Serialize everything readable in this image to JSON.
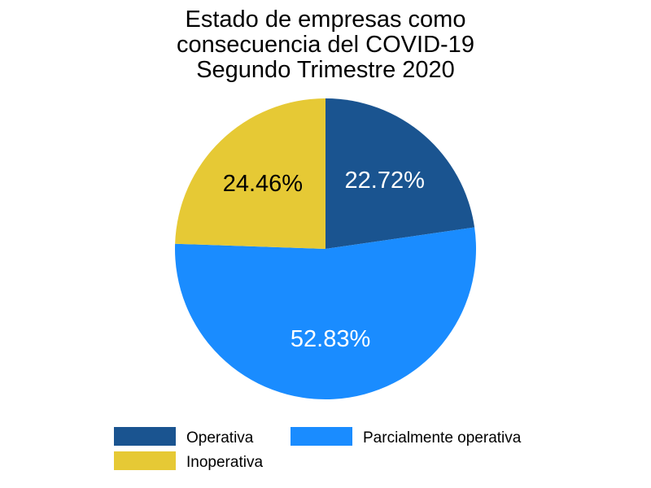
{
  "chart_data": {
    "type": "pie",
    "title_lines": [
      "Estado de empresas como",
      "consecuencia del COVID-19",
      "Segundo Trimestre 2020"
    ],
    "start_angle_deg": 0,
    "direction": "clockwise",
    "slices": [
      {
        "name": "Operativa",
        "value": 22.72,
        "label": "22.72%",
        "color": "#1a5490",
        "label_color": "#ffffff"
      },
      {
        "name": "Parcialmente operativa",
        "value": 52.83,
        "label": "52.83%",
        "color": "#1a8cff",
        "label_color": "#ffffff"
      },
      {
        "name": "Inoperativa",
        "value": 24.46,
        "label": "24.46%",
        "color": "#e6c935",
        "label_color": "#000000"
      }
    ],
    "legend": {
      "placement": "bottom",
      "items": [
        {
          "name": "Operativa",
          "color": "#1a5490"
        },
        {
          "name": "Parcialmente operativa",
          "color": "#1a8cff"
        },
        {
          "name": "Inoperativa",
          "color": "#e6c935"
        }
      ]
    }
  }
}
